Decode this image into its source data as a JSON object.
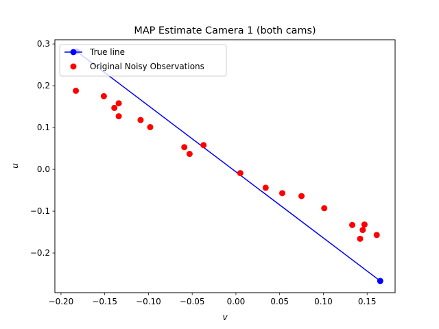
{
  "chart_data": {
    "type": "scatter",
    "title": "MAP Estimate Camera 1 (both cams)",
    "xlabel": "v",
    "ylabel": "u",
    "xlim": [
      -0.207,
      0.182
    ],
    "ylim": [
      -0.295,
      0.31
    ],
    "xticks": [
      -0.2,
      -0.15,
      -0.1,
      -0.05,
      0.0,
      0.05,
      0.1,
      0.15
    ],
    "xtick_labels": [
      "−0.20",
      "−0.15",
      "−0.10",
      "−0.05",
      "0.00",
      "0.05",
      "0.10",
      "0.15"
    ],
    "yticks": [
      -0.2,
      -0.1,
      0.0,
      0.1,
      0.2,
      0.3
    ],
    "ytick_labels": [
      "−0.2",
      "−0.1",
      "0.0",
      "0.1",
      "0.2",
      "0.3"
    ],
    "grid": false,
    "legend_position": "top-left",
    "series": [
      {
        "name": "True line",
        "kind": "line",
        "color": "#0000ff",
        "marker": "circle",
        "points": [
          [
            -0.182,
            0.282
          ],
          [
            0.165,
            -0.267
          ]
        ]
      },
      {
        "name": "Original Noisy Observations",
        "kind": "scatter",
        "color": "#ff0000",
        "marker": "circle",
        "points": [
          [
            -0.183,
            0.188
          ],
          [
            -0.151,
            0.175
          ],
          [
            -0.139,
            0.147
          ],
          [
            -0.134,
            0.158
          ],
          [
            -0.134,
            0.127
          ],
          [
            -0.109,
            0.118
          ],
          [
            -0.098,
            0.101
          ],
          [
            -0.059,
            0.053
          ],
          [
            -0.053,
            0.037
          ],
          [
            -0.037,
            0.058
          ],
          [
            0.005,
            -0.009
          ],
          [
            0.034,
            -0.044
          ],
          [
            0.053,
            -0.057
          ],
          [
            0.075,
            -0.064
          ],
          [
            0.101,
            -0.093
          ],
          [
            0.133,
            -0.133
          ],
          [
            0.142,
            -0.166
          ],
          [
            0.145,
            -0.145
          ],
          [
            0.147,
            -0.132
          ],
          [
            0.161,
            -0.157
          ]
        ]
      }
    ]
  }
}
